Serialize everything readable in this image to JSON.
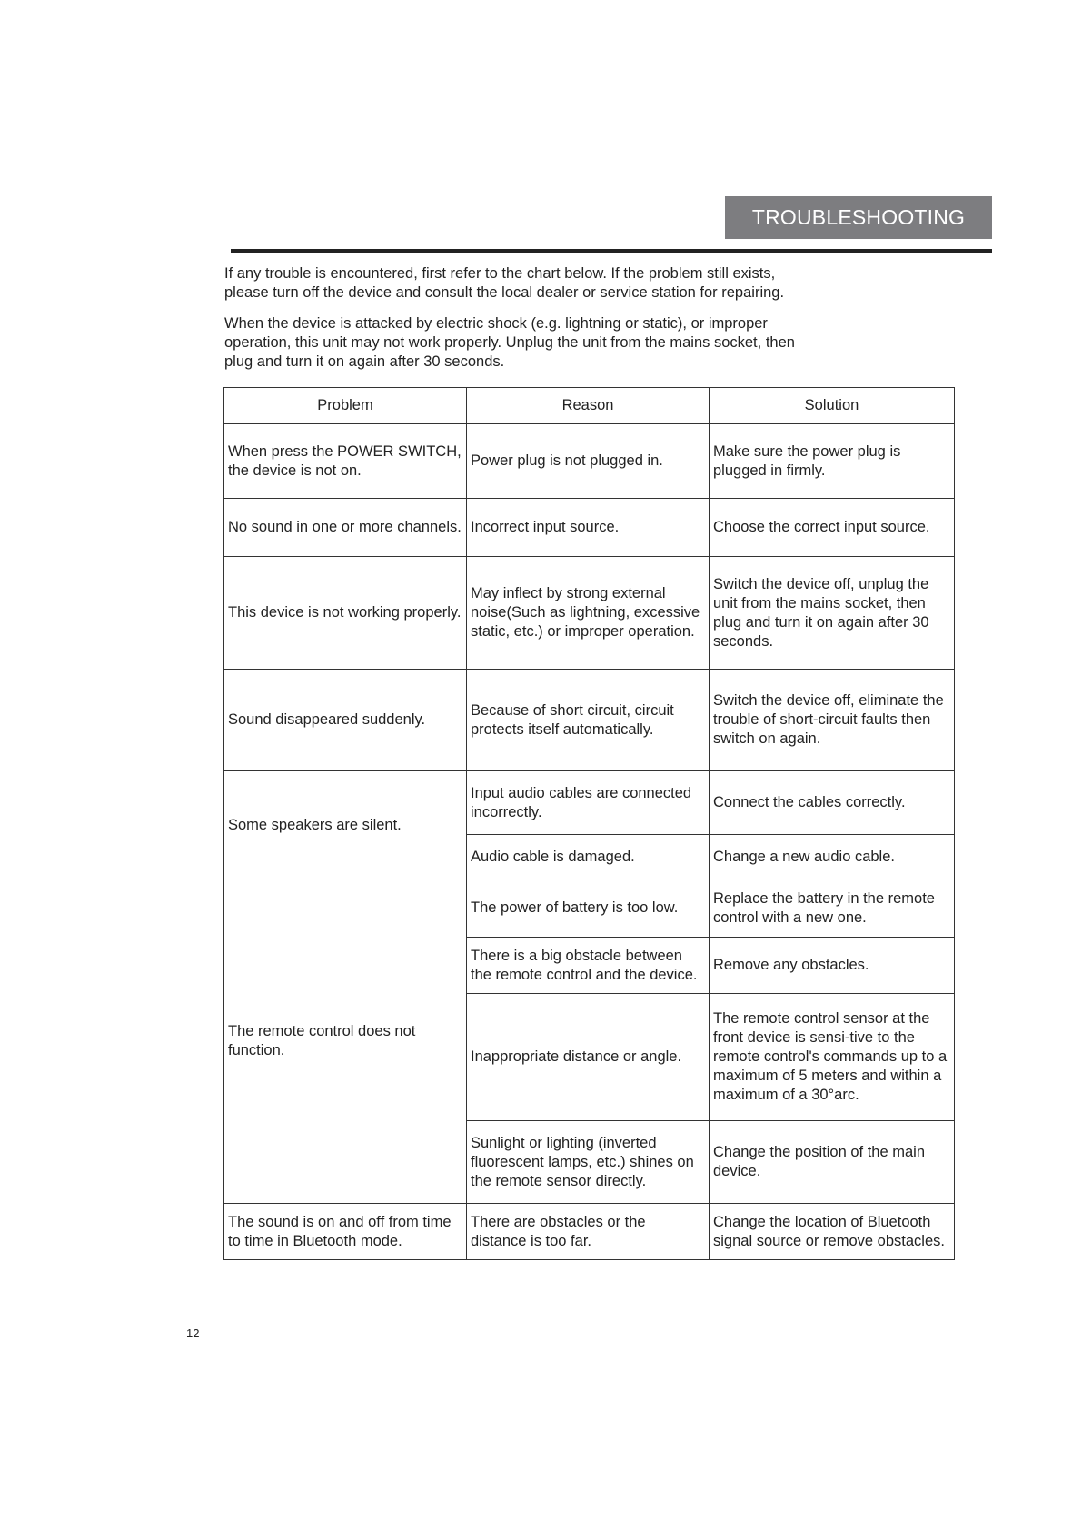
{
  "header": {
    "title": "TROUBLESHOOTING"
  },
  "intro": {
    "p1": [
      "If any trouble is encountered, first refer to the chart below. If the problem still exists,",
      "please turn off the device and consult the local dealer or service station for repairing."
    ],
    "p2": [
      "When the device is attacked by electric shock (e.g. lightning or static), or improper",
      "operation, this unit may not work properly. Unplug the unit from the mains socket, then",
      "plug and turn it on again after 30 seconds."
    ]
  },
  "table": {
    "columns": [
      "Problem",
      "Reason",
      "Solution"
    ],
    "problems": [
      "When press the POWER SWITCH, the device is not on.",
      "No sound in one or more channels.",
      "This device is not working properly.",
      "Sound disappeared suddenly.",
      "Some speakers are silent.",
      "The remote control does not function.",
      "The sound is on and off from time to time in Bluetooth mode."
    ],
    "rows": [
      {
        "reason": "Power plug is not plugged in.",
        "solution": "Make sure the power plug is plugged in firmly."
      },
      {
        "reason": "Incorrect input source.",
        "solution": "Choose the correct input source."
      },
      {
        "reason": "May inflect by strong external noise(Such as lightning, excessive static, etc.) or improper operation.",
        "solution": "Switch the device off, unplug the unit from the mains socket, then plug and turn it on again after 30 seconds."
      },
      {
        "reason": "Because of short circuit, circuit protects itself automatically.",
        "solution": "Switch the device off, eliminate the trouble of short-circuit faults then switch on again."
      },
      {
        "reason": "Input  audio cables are connected incorrectly.",
        "solution": "Connect the cables correctly."
      },
      {
        "reason": "Audio cable is damaged.",
        "solution": "Change a new audio cable."
      },
      {
        "reason": "The power of battery is too low.",
        "solution": "Replace the battery in the remote control with a new one."
      },
      {
        "reason": "There is a big obstacle between the remote control and the device.",
        "solution": "Remove any obstacles."
      },
      {
        "reason": "Inappropriate distance or angle.",
        "solution": "The remote control sensor at the front device is sensi-tive to the remote control's commands up to a maximum of 5 meters and within a maximum of a 30°arc."
      },
      {
        "reason": "Sunlight or lighting (inverted fluorescent lamps, etc.) shines on the remote sensor directly.",
        "solution": "Change the position of the main device."
      },
      {
        "reason": "There are obstacles or the distance is too far.",
        "solution": "Change the location of Bluetooth signal source or remove obstacles."
      }
    ]
  },
  "footer": {
    "page_number": "12"
  }
}
